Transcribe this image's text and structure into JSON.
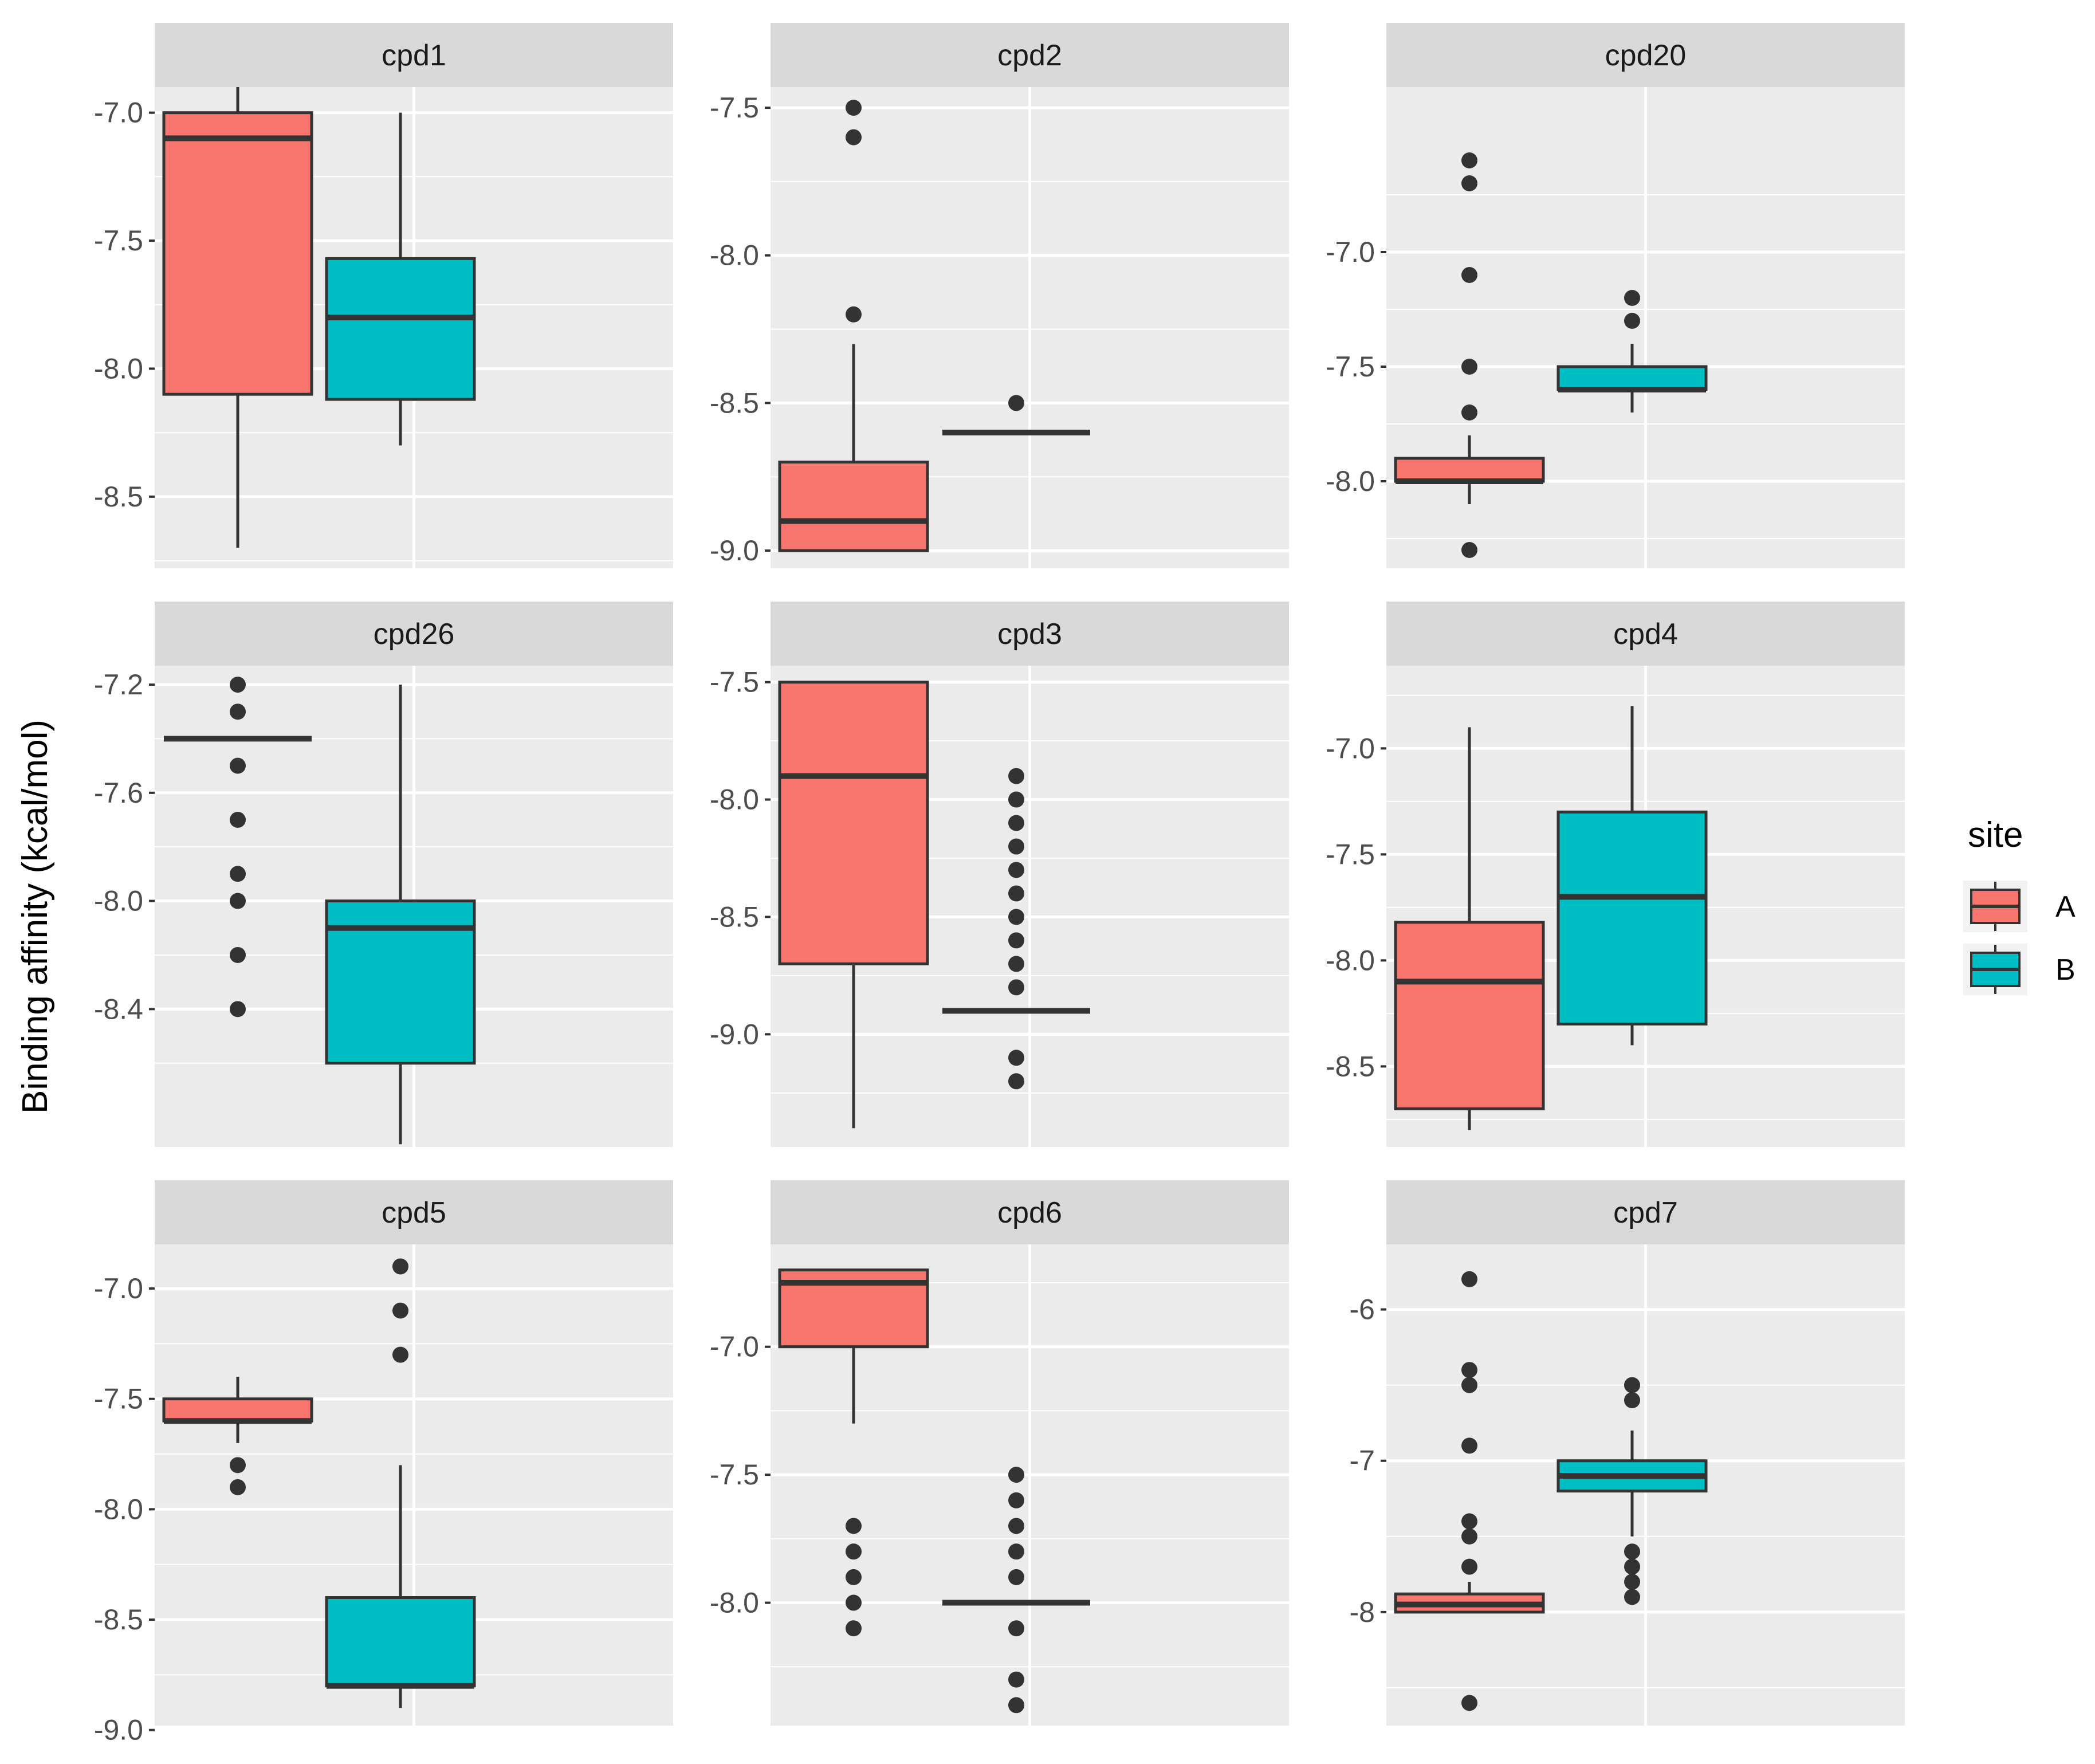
{
  "colors": {
    "A": "#F8766D",
    "B": "#00BFC4",
    "panel_bg": "#EBEBEB",
    "strip_bg": "#D9D9D9",
    "line": "#333333"
  },
  "chart_data": {
    "type": "boxplot",
    "ylabel": "Binding affinity (kcal/mol)",
    "legend": {
      "title": "site",
      "entries": [
        "A",
        "B"
      ],
      "position": "right"
    },
    "panels": [
      {
        "title": "cpd1",
        "ylim": [
          -8.78,
          -6.9
        ],
        "ticks": [
          -7.0,
          -7.5,
          -8.0,
          -8.5
        ],
        "tick_labels": [
          "-7.0",
          "-7.5",
          "-8.0",
          "-8.5"
        ],
        "boxes": [
          {
            "site": "A",
            "lower": -8.7,
            "q1": -8.1,
            "median": -7.1,
            "q3": -7.0,
            "upper": -6.9,
            "outliers": []
          },
          {
            "site": "B",
            "lower": -8.3,
            "q1": -8.12,
            "median": -7.8,
            "q3": -7.57,
            "upper": -7.0,
            "outliers": []
          }
        ]
      },
      {
        "title": "cpd2",
        "ylim": [
          -9.06,
          -7.43
        ],
        "ticks": [
          -7.5,
          -8.0,
          -8.5,
          -9.0
        ],
        "tick_labels": [
          "-7.5",
          "-8.0",
          "-8.5",
          "-9.0"
        ],
        "boxes": [
          {
            "site": "A",
            "lower": -9.0,
            "q1": -9.0,
            "median": -8.9,
            "q3": -8.7,
            "upper": -8.3,
            "outliers": [
              -7.5,
              -7.6,
              -8.2
            ]
          },
          {
            "site": "B",
            "lower": -8.6,
            "q1": -8.6,
            "median": -8.6,
            "q3": -8.6,
            "upper": -8.6,
            "outliers": [
              -8.5
            ]
          }
        ]
      },
      {
        "title": "cpd20",
        "ylim": [
          -8.38,
          -6.28
        ],
        "ticks": [
          -7.0,
          -7.5,
          -8.0
        ],
        "tick_labels": [
          "-7.0",
          "-7.5",
          "-8.0"
        ],
        "boxes": [
          {
            "site": "A",
            "lower": -8.1,
            "q1": -8.0,
            "median": -8.0,
            "q3": -7.9,
            "upper": -7.8,
            "outliers": [
              -6.6,
              -6.7,
              -7.1,
              -7.5,
              -7.7,
              -8.3
            ]
          },
          {
            "site": "B",
            "lower": -7.7,
            "q1": -7.6,
            "median": -7.6,
            "q3": -7.5,
            "upper": -7.4,
            "outliers": [
              -7.2,
              -7.3
            ]
          }
        ]
      },
      {
        "title": "cpd26",
        "ylim": [
          -8.91,
          -7.13
        ],
        "ticks": [
          -7.2,
          -7.6,
          -8.0,
          -8.4
        ],
        "tick_labels": [
          "-7.2",
          "-7.6",
          "-8.0",
          "-8.4"
        ],
        "boxes": [
          {
            "site": "A",
            "lower": -7.4,
            "q1": -7.4,
            "median": -7.4,
            "q3": -7.4,
            "upper": -7.4,
            "outliers": [
              -7.2,
              -7.3,
              -7.5,
              -7.7,
              -7.9,
              -8.0,
              -8.2,
              -8.4
            ]
          },
          {
            "site": "B",
            "lower": -8.9,
            "q1": -8.6,
            "median": -8.1,
            "q3": -8.0,
            "upper": -7.2,
            "outliers": []
          }
        ]
      },
      {
        "title": "cpd3",
        "ylim": [
          -9.48,
          -7.43
        ],
        "ticks": [
          -7.5,
          -8.0,
          -8.5,
          -9.0
        ],
        "tick_labels": [
          "-7.5",
          "-8.0",
          "-8.5",
          "-9.0"
        ],
        "boxes": [
          {
            "site": "A",
            "lower": -9.4,
            "q1": -8.7,
            "median": -7.9,
            "q3": -7.5,
            "upper": -7.5,
            "outliers": []
          },
          {
            "site": "B",
            "lower": -8.9,
            "q1": -8.9,
            "median": -8.9,
            "q3": -8.9,
            "upper": -8.9,
            "outliers": [
              -7.9,
              -8.0,
              -8.1,
              -8.2,
              -8.3,
              -8.4,
              -8.5,
              -8.6,
              -8.7,
              -8.8,
              -9.1,
              -9.2
            ]
          }
        ]
      },
      {
        "title": "cpd4",
        "ylim": [
          -8.88,
          -6.61
        ],
        "ticks": [
          -7.0,
          -7.5,
          -8.0,
          -8.5
        ],
        "tick_labels": [
          "-7.0",
          "-7.5",
          "-8.0",
          "-8.5"
        ],
        "boxes": [
          {
            "site": "A",
            "lower": -8.8,
            "q1": -8.7,
            "median": -8.1,
            "q3": -7.82,
            "upper": -6.9,
            "outliers": []
          },
          {
            "site": "B",
            "lower": -8.4,
            "q1": -8.3,
            "median": -7.7,
            "q3": -7.3,
            "upper": -6.8,
            "outliers": []
          }
        ]
      },
      {
        "title": "cpd5",
        "ylim": [
          -8.98,
          -6.8
        ],
        "ticks": [
          -7.0,
          -7.5,
          -8.0,
          -8.5,
          -9.0
        ],
        "tick_labels": [
          "-7.0",
          "-7.5",
          "-8.0",
          "-8.5",
          "-9.0"
        ],
        "boxes": [
          {
            "site": "A",
            "lower": -7.7,
            "q1": -7.6,
            "median": -7.6,
            "q3": -7.5,
            "upper": -7.4,
            "outliers": [
              -7.8,
              -7.9
            ]
          },
          {
            "site": "B",
            "lower": -8.9,
            "q1": -8.8,
            "median": -8.8,
            "q3": -8.4,
            "upper": -7.8,
            "outliers": [
              -6.9,
              -7.1,
              -7.3
            ]
          }
        ]
      },
      {
        "title": "cpd6",
        "ylim": [
          -8.48,
          -6.6
        ],
        "ticks": [
          -7.0,
          -7.5,
          -8.0
        ],
        "tick_labels": [
          "-7.0",
          "-7.5",
          "-8.0"
        ],
        "boxes": [
          {
            "site": "A",
            "lower": -7.3,
            "q1": -7.0,
            "median": -6.75,
            "q3": -6.7,
            "upper": -6.7,
            "outliers": [
              -7.7,
              -7.8,
              -7.9,
              -8.0,
              -8.1
            ]
          },
          {
            "site": "B",
            "lower": -8.0,
            "q1": -8.0,
            "median": -8.0,
            "q3": -8.0,
            "upper": -8.0,
            "outliers": [
              -7.5,
              -7.6,
              -7.7,
              -7.8,
              -7.9,
              -8.1,
              -8.3,
              -8.4
            ]
          }
        ]
      },
      {
        "title": "cpd7",
        "ylim": [
          -8.75,
          -5.57
        ],
        "ticks": [
          -6,
          -7,
          -8
        ],
        "tick_labels": [
          "-6",
          "-7",
          "-8"
        ],
        "boxes": [
          {
            "site": "A",
            "lower": -8.0,
            "q1": -8.0,
            "median": -7.95,
            "q3": -7.88,
            "upper": -7.8,
            "outliers": [
              -5.8,
              -6.4,
              -6.5,
              -6.9,
              -7.4,
              -7.5,
              -7.7,
              -8.6
            ]
          },
          {
            "site": "B",
            "lower": -7.5,
            "q1": -7.2,
            "median": -7.1,
            "q3": -7.0,
            "upper": -6.8,
            "outliers": [
              -6.5,
              -6.6,
              -7.6,
              -7.7,
              -7.8,
              -7.9
            ]
          }
        ]
      }
    ]
  }
}
